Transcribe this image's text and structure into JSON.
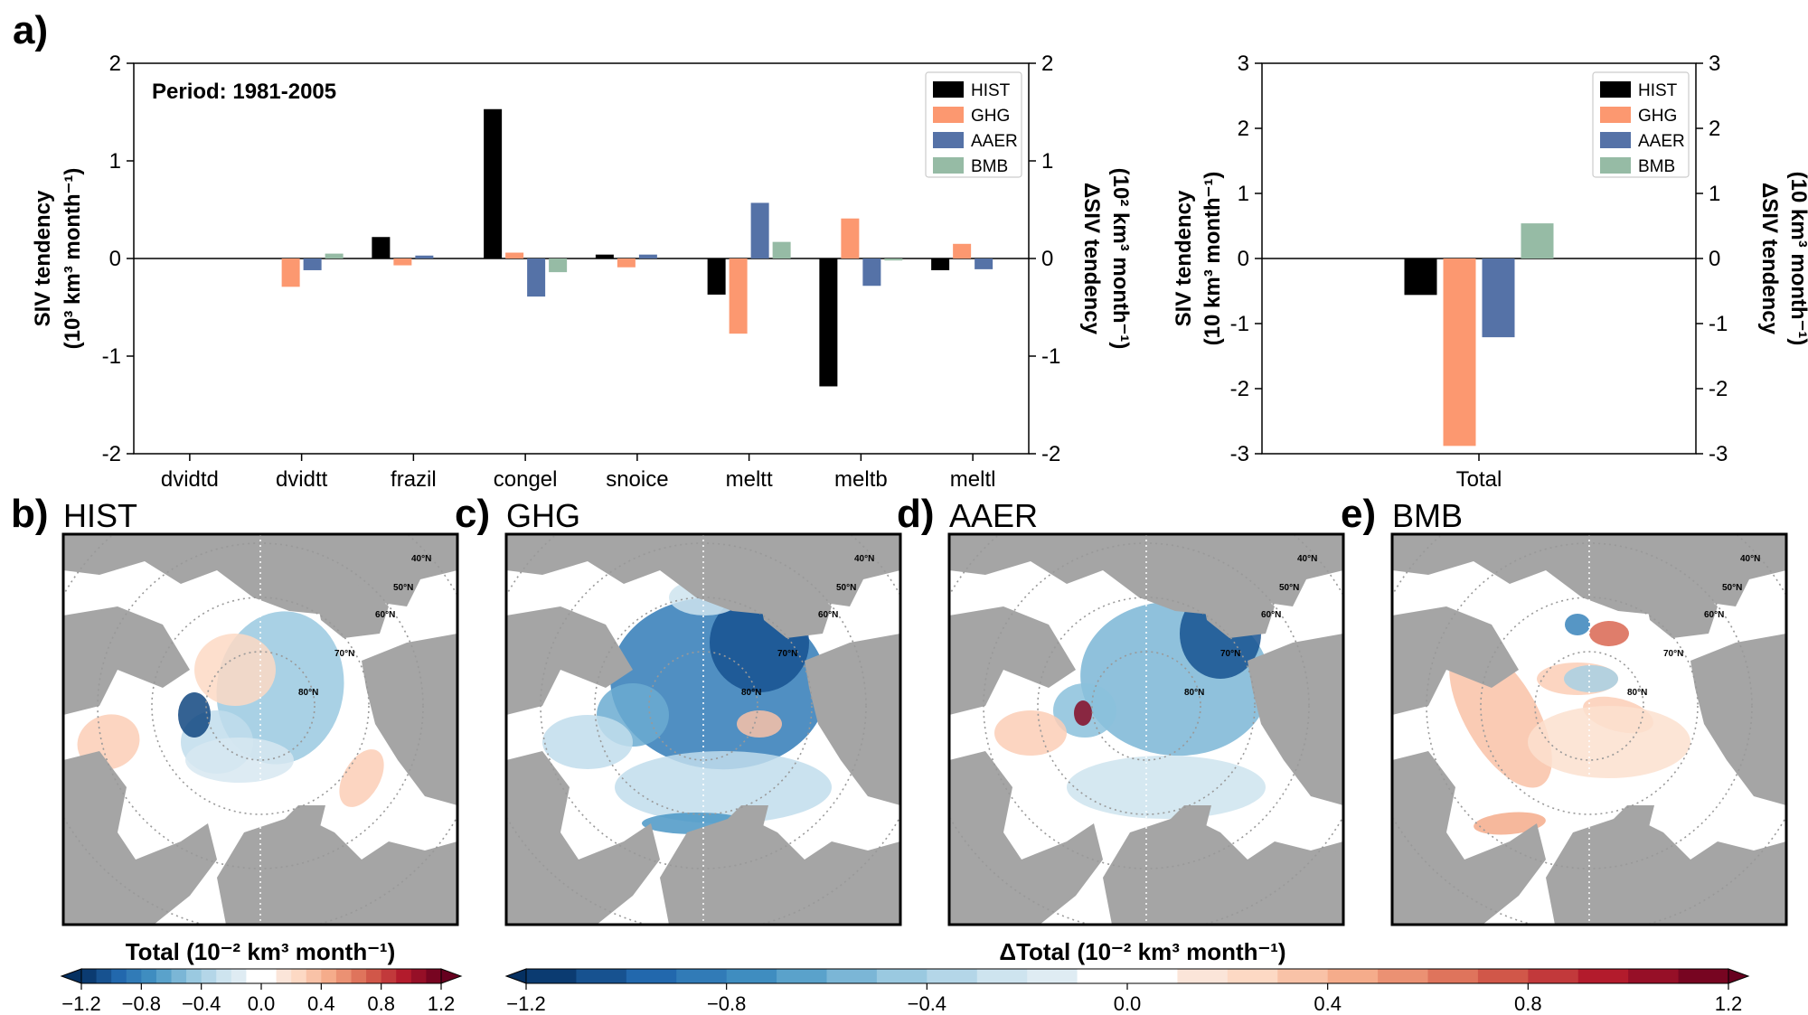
{
  "colors": {
    "HIST": "#000000",
    "GHG": "#fc9870",
    "AAER": "#5572a7",
    "BMB": "#96bba5",
    "land": "#a5a5a5",
    "frame": "#000000"
  },
  "panel_a": {
    "label": "a)",
    "period": "Period: 1981-2005"
  },
  "panel_labels": {
    "b": "b)",
    "c": "c)",
    "d": "d)",
    "e": "e)"
  },
  "map_titles": [
    "HIST",
    "GHG",
    "AAER",
    "BMB"
  ],
  "lat_labels": [
    "40°N",
    "50°N",
    "60°N",
    "70°N",
    "80°N"
  ],
  "cbar_small": {
    "label": "Total (10⁻² km³ month⁻¹)",
    "ticks": [
      "−1.2",
      "−0.8",
      "−0.4",
      "0.0",
      "0.4",
      "0.8",
      "1.2"
    ]
  },
  "cbar_big": {
    "label": "ΔTotal (10⁻² km³ month⁻¹)",
    "ticks": [
      "−1.2",
      "−0.8",
      "−0.4",
      "0.0",
      "0.4",
      "0.8",
      "1.2"
    ]
  },
  "chart_data": [
    {
      "type": "bar",
      "title": "Period: 1981-2005",
      "categories": [
        "dvidtd",
        "dvidtt",
        "frazil",
        "congel",
        "snoice",
        "meltt",
        "meltb",
        "meltl"
      ],
      "series": [
        {
          "name": "HIST",
          "values": [
            0.0,
            0.0,
            0.22,
            1.53,
            0.04,
            -0.37,
            -1.31,
            -0.12
          ]
        },
        {
          "name": "GHG",
          "values": [
            0.0,
            -0.29,
            -0.07,
            0.06,
            -0.09,
            -0.77,
            0.41,
            0.15
          ]
        },
        {
          "name": "AAER",
          "values": [
            0.0,
            -0.12,
            0.03,
            -0.39,
            0.04,
            0.57,
            -0.28,
            -0.11
          ]
        },
        {
          "name": "BMB",
          "values": [
            0.0,
            0.05,
            0.0,
            -0.14,
            0.0,
            0.17,
            -0.02,
            0.0
          ]
        }
      ],
      "ylim": [
        -2,
        2
      ],
      "yticks": [
        "-2",
        "-1",
        "0",
        "1",
        "2"
      ],
      "ylabel_line1": "SIV tendency",
      "ylabel_line2": "(10³ km³ month⁻¹)",
      "y2label_line1": "ΔSIV tendency",
      "y2label_line2": "(10² km³ month⁻¹)",
      "legend": [
        "HIST",
        "GHG",
        "AAER",
        "BMB"
      ],
      "legend_position": "top-right"
    },
    {
      "type": "bar",
      "categories": [
        "Total"
      ],
      "series": [
        {
          "name": "HIST",
          "values": [
            -0.56
          ]
        },
        {
          "name": "GHG",
          "values": [
            -2.88
          ]
        },
        {
          "name": "AAER",
          "values": [
            -1.21
          ]
        },
        {
          "name": "BMB",
          "values": [
            0.54
          ]
        }
      ],
      "ylim": [
        -3,
        3
      ],
      "yticks": [
        "-3",
        "-2",
        "-1",
        "0",
        "1",
        "2",
        "3"
      ],
      "ylabel_line1": "SIV tendency",
      "ylabel_line2": "(10 km³ month⁻¹)",
      "y2label_line1": "ΔSIV tendency",
      "y2label_line2": "(10 km³ month⁻¹)",
      "legend": [
        "HIST",
        "GHG",
        "AAER",
        "BMB"
      ],
      "legend_position": "top-right"
    }
  ]
}
